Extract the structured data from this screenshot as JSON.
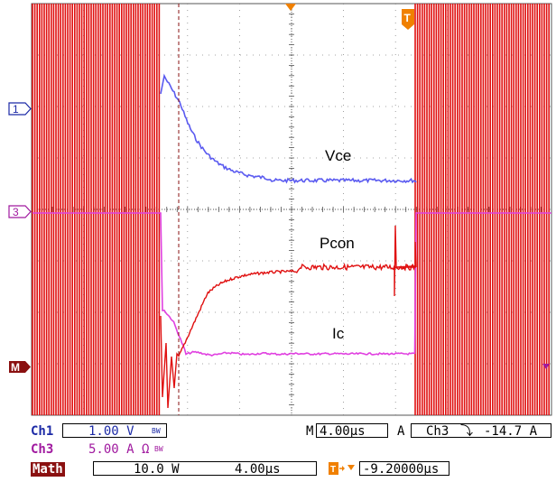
{
  "traces": {
    "vce": {
      "label": "Vce",
      "color": "#5a5af0"
    },
    "pcon": {
      "label": "Pcon",
      "color": "#e01010"
    },
    "ic": {
      "label": "Ic",
      "color": "#e040e0"
    }
  },
  "markers": {
    "ch1": "1",
    "ch3": "3",
    "math": "M",
    "trigger": "T"
  },
  "status": {
    "ch1_label": "Ch1",
    "ch1_scale": "1.00 V",
    "ch1_bw": "BW",
    "ch3_label": "Ch3",
    "ch3_scale": "5.00 A Ω",
    "ch3_bw": "BW",
    "math_label": "Math",
    "math_scale": "10.0 W",
    "math_time": "4.00µs",
    "timebase_prefix": "M",
    "timebase": "4.00µs",
    "trigger_mode": "A",
    "trigger_source": "Ch3",
    "trigger_slope": "⤵",
    "trigger_level": "-14.7 A",
    "trigger_offset": "-9.20000µs"
  },
  "colors": {
    "grid": "#555555",
    "pcon_red": "#e01010",
    "ch1_blue": "#1c2aa6",
    "ch3_magenta": "#a0199f",
    "math_maroon": "#8a1010",
    "trigger_orange": "#f08000"
  }
}
